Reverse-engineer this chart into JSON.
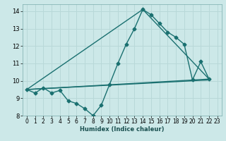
{
  "background_color": "#cce8e8",
  "grid_color": "#b8d8d8",
  "line_color": "#1a7070",
  "xlim": [
    -0.5,
    23.5
  ],
  "ylim": [
    8,
    14.4
  ],
  "xlabel": "Humidex (Indice chaleur)",
  "xticks": [
    0,
    1,
    2,
    3,
    4,
    5,
    6,
    7,
    8,
    9,
    10,
    11,
    12,
    13,
    14,
    15,
    16,
    17,
    18,
    19,
    20,
    21,
    22,
    23
  ],
  "yticks": [
    8,
    9,
    10,
    11,
    12,
    13,
    14
  ],
  "series_zigzag": {
    "x": [
      0,
      1,
      2,
      3,
      4,
      5,
      6,
      7,
      8,
      9,
      10,
      11,
      12,
      13,
      14,
      15,
      16,
      17,
      18,
      19,
      20,
      21,
      22
    ],
    "y": [
      9.5,
      9.3,
      9.6,
      9.3,
      9.45,
      8.85,
      8.7,
      8.4,
      8.0,
      8.6,
      9.8,
      11.0,
      12.1,
      13.0,
      14.1,
      13.8,
      13.3,
      12.8,
      12.5,
      12.1,
      10.05,
      11.1,
      10.1
    ],
    "marker": "D",
    "markersize": 2.5,
    "lw": 1.0
  },
  "series_lines": [
    {
      "x": [
        0,
        22
      ],
      "y": [
        9.5,
        10.1
      ]
    },
    {
      "x": [
        0,
        14,
        22
      ],
      "y": [
        9.5,
        14.1,
        10.1
      ]
    },
    {
      "x": [
        0,
        22
      ],
      "y": [
        9.5,
        10.05
      ]
    }
  ],
  "line_lw": 1.0,
  "title_fontsize": 7,
  "axis_fontsize": 5.5,
  "xlabel_fontsize": 6
}
